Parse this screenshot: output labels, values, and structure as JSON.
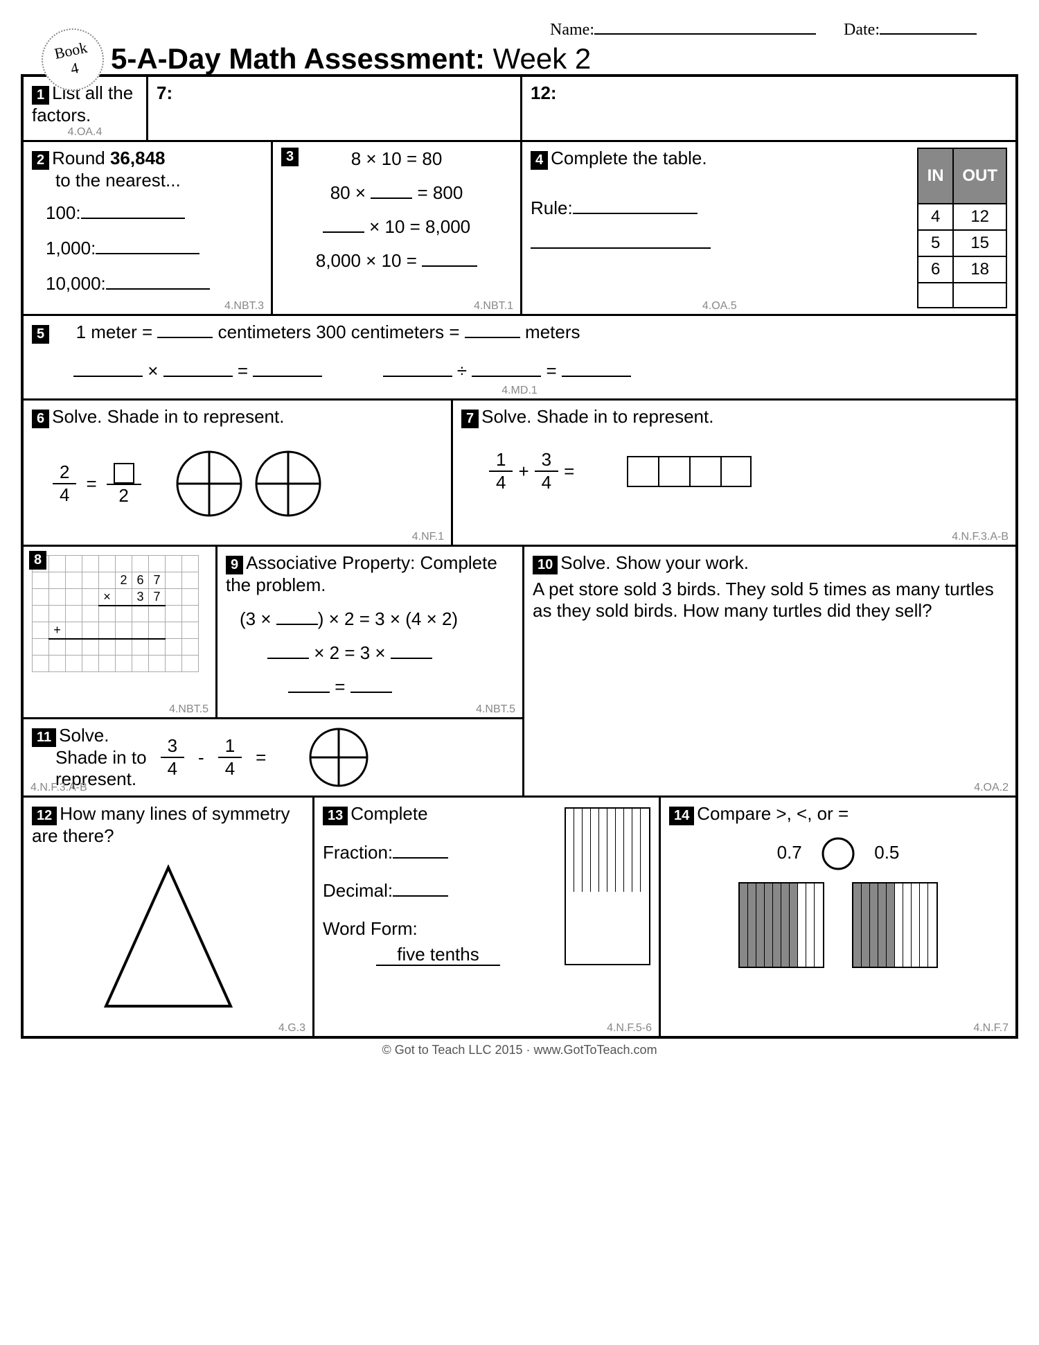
{
  "header": {
    "name_label": "Name:",
    "date_label": "Date:"
  },
  "badge": {
    "book": "Book",
    "num": "4"
  },
  "title": {
    "bold": "5-A-Day Math Assessment:",
    "light": " Week 2"
  },
  "q1": {
    "num": "1",
    "prompt": "List all the factors.",
    "a": "7:",
    "b": "12:",
    "std": "4.OA.4"
  },
  "q2": {
    "num": "2",
    "prompt_a": "Round ",
    "bold": "36,848",
    "prompt_b": " to the nearest...",
    "l1": "100:",
    "l2": "1,000:",
    "l3": "10,000:",
    "std": "4.NBT.3"
  },
  "q3": {
    "num": "3",
    "l1": "8 × 10 = 80",
    "l2a": "80 × ",
    "l2b": " = 800",
    "l3a": "",
    "l3b": " × 10 = 8,000",
    "l4a": "8,000 × 10 = ",
    "std": "4.NBT.1"
  },
  "q4": {
    "num": "4",
    "prompt": "Complete the table.",
    "rule": "Rule:",
    "th_in": "IN",
    "th_out": "OUT",
    "rows": [
      [
        "4",
        "12"
      ],
      [
        "5",
        "15"
      ],
      [
        "6",
        "18"
      ],
      [
        "",
        ""
      ]
    ],
    "std": "4.OA.5"
  },
  "q5": {
    "num": "5",
    "l1a": "1 meter = ",
    "l1b": " centimeters",
    "l1c": "   300 centimeters = ",
    "l1d": " meters",
    "op1": " × ",
    "op2": " = ",
    "op3": " ÷ ",
    "std": "4.MD.1"
  },
  "q6": {
    "num": "6",
    "prompt": "Solve. Shade in to represent.",
    "f1n": "2",
    "f1d": "4",
    "eq": " = ",
    "f2d": "2",
    "std": "4.NF.1"
  },
  "q7": {
    "num": "7",
    "prompt": "Solve. Shade in to represent.",
    "f1n": "1",
    "f1d": "4",
    "plus": " + ",
    "f2n": "3",
    "f2d": "4",
    "eq": " = ",
    "std": "4.N.F.3.A-B"
  },
  "q8": {
    "num": "8",
    "n1": "267",
    "n2": "37",
    "op": "×",
    "plus": "+",
    "std": "4.NBT.5"
  },
  "q9": {
    "num": "9",
    "prompt": "Associative Property: Complete the problem.",
    "l1a": "(3 × ",
    "l1b": ") × 2 = 3 × (4 × 2)",
    "l2a": " × 2 = 3 × ",
    "l3": " = ",
    "std": "4.NBT.5"
  },
  "q10": {
    "num": "10",
    "prompt": "Solve. Show your work.",
    "body": "A pet store sold 3 birds. They sold 5 times as many turtles as they sold birds. How many turtles did they sell?",
    "std": "4.OA.2"
  },
  "q11": {
    "num": "11",
    "prompt": "Solve. Shade in to represent.",
    "f1n": "3",
    "f1d": "4",
    "minus": " - ",
    "f2n": "1",
    "f2d": "4",
    "eq": " = ",
    "std": "4.N.F.3.A-B"
  },
  "q12": {
    "num": "12",
    "prompt": "How many lines of symmetry are there?",
    "std": "4.G.3"
  },
  "q13": {
    "num": "13",
    "prompt": "Complete",
    "frac": "Fraction:",
    "dec": "Decimal:",
    "wf": "Word Form:",
    "wf_ans": "five tenths",
    "std": "4.N.F.5-6"
  },
  "q14": {
    "num": "14",
    "prompt": "Compare >, <, or =",
    "a": "0.7",
    "b": "0.5",
    "std": "4.N.F.7",
    "shaded_a": 7,
    "shaded_b": 5
  },
  "footer": "© Got to Teach LLC 2015 · www.GotToTeach.com"
}
